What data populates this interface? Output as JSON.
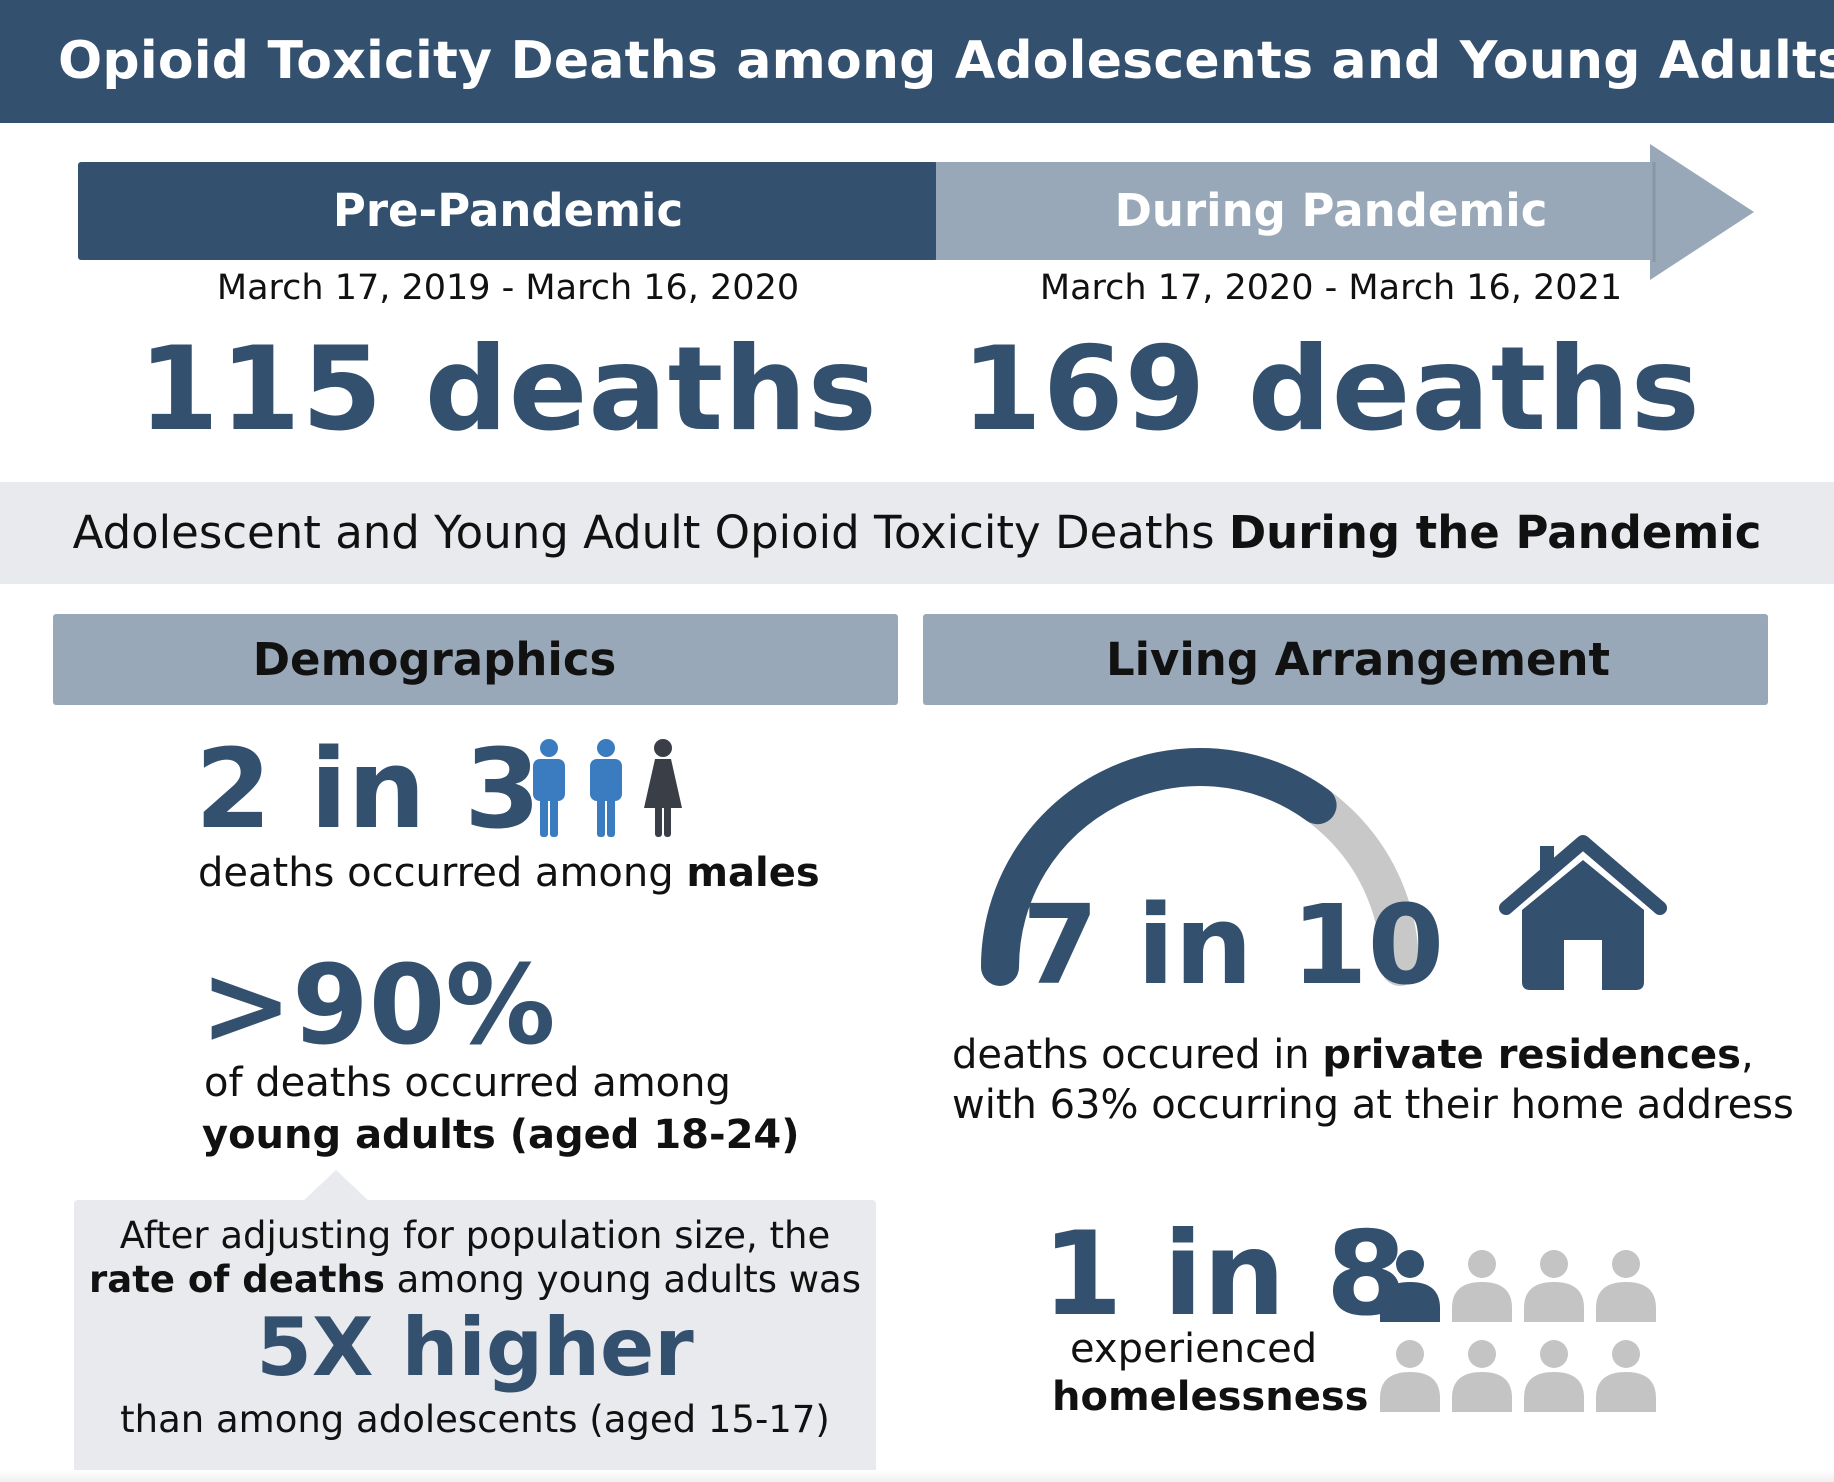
{
  "title": "Opioid Toxicity Deaths among Adolescents and Young Adults",
  "colors": {
    "navy": "#34506f",
    "steel": "#98a8b8",
    "light_gray": "#e8eaed",
    "blue_person": "#3b7bbf",
    "dark_person": "#3a3f47",
    "gauge_track": "#c8c8c8",
    "gray_person": "#c4c4c4"
  },
  "pre_pandemic": {
    "label": "Pre-Pandemic",
    "dates": "March 17, 2019 - March 16, 2020",
    "deaths": "115 deaths"
  },
  "during_pandemic": {
    "label": "During Pandemic",
    "dates": "March 17, 2020 - March 16, 2021",
    "deaths": "169 deaths"
  },
  "subheader": {
    "prefix": "Adolescent and Young Adult Opioid Toxicity Deaths ",
    "emphasis": "During the Pandemic"
  },
  "demographics": {
    "title": "Demographics",
    "males": {
      "stat": "2 in 3",
      "text": "deaths occurred among ",
      "emphasis": "males",
      "icons": [
        "male-person-icon",
        "male-person-icon",
        "female-person-icon"
      ]
    },
    "young_adults": {
      "stat": ">90%",
      "line1": "of deaths occurred among",
      "line2": "young adults (aged 18-24)"
    },
    "callout": {
      "line1": "After adjusting for population size, the",
      "line2_emphasis": "rate of deaths",
      "line2_rest": " among young adults was",
      "stat": "5X higher",
      "line3": "than among adolescents (aged 15-17)"
    }
  },
  "living": {
    "title": "Living Arrangement",
    "residence": {
      "stat": "7 in 10",
      "fraction": 0.7,
      "icon": "house-icon",
      "line1_prefix": "deaths occured in ",
      "line1_emphasis": "private residences",
      "line1_suffix": ",",
      "line2": "with 63% occurring at their home address"
    },
    "homeless": {
      "stat": "1 in 8",
      "highlighted_count": 1,
      "total_count": 8,
      "icon": "person-icon",
      "line1": "experienced",
      "line2": "homelessness"
    }
  }
}
